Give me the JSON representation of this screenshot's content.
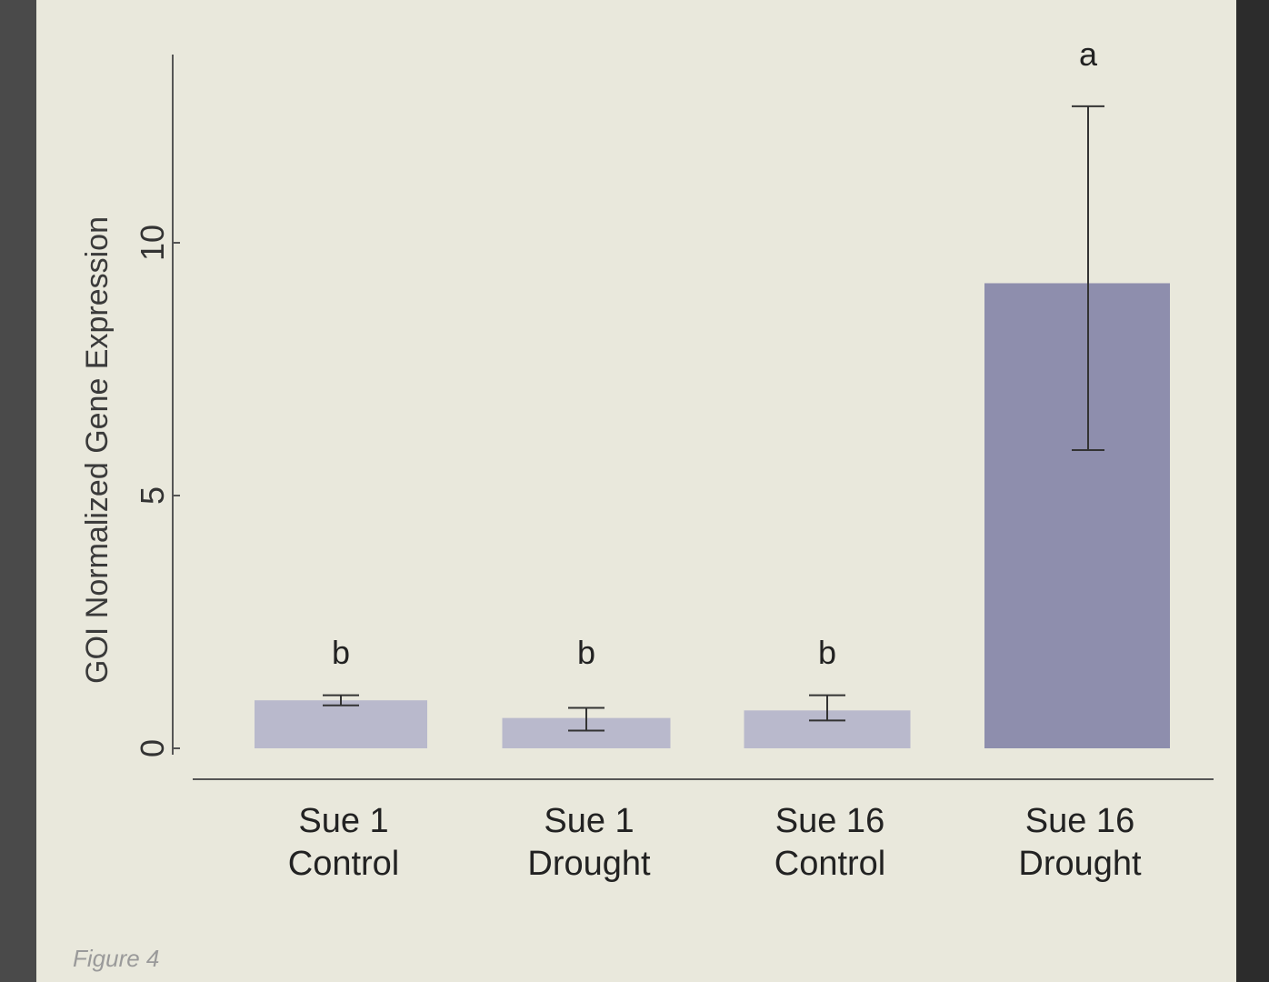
{
  "chart_data": {
    "type": "bar",
    "title": "",
    "xlabel": "",
    "ylabel": "GOI Normalized Gene Expression",
    "ylim": [
      0,
      13
    ],
    "yticks": [
      "0",
      "5",
      "10"
    ],
    "ytick_values": [
      0,
      5,
      10
    ],
    "categories": [
      [
        "Sue 1",
        "Control"
      ],
      [
        "Sue 1",
        "Drought"
      ],
      [
        "Sue 16",
        "Control"
      ],
      [
        "Sue 16",
        "Drought"
      ]
    ],
    "values": [
      0.95,
      0.6,
      0.75,
      9.2
    ],
    "error_low": [
      0.85,
      0.35,
      0.55,
      5.9
    ],
    "error_high": [
      1.05,
      0.8,
      1.05,
      12.7
    ],
    "significance": [
      "b",
      "b",
      "b",
      "a"
    ],
    "bar_colors": [
      "#b9b9cc",
      "#b9b9cc",
      "#b9b9cc",
      "#8e8ead"
    ],
    "grid": false,
    "legend": "none"
  },
  "caption": "Figure 4"
}
